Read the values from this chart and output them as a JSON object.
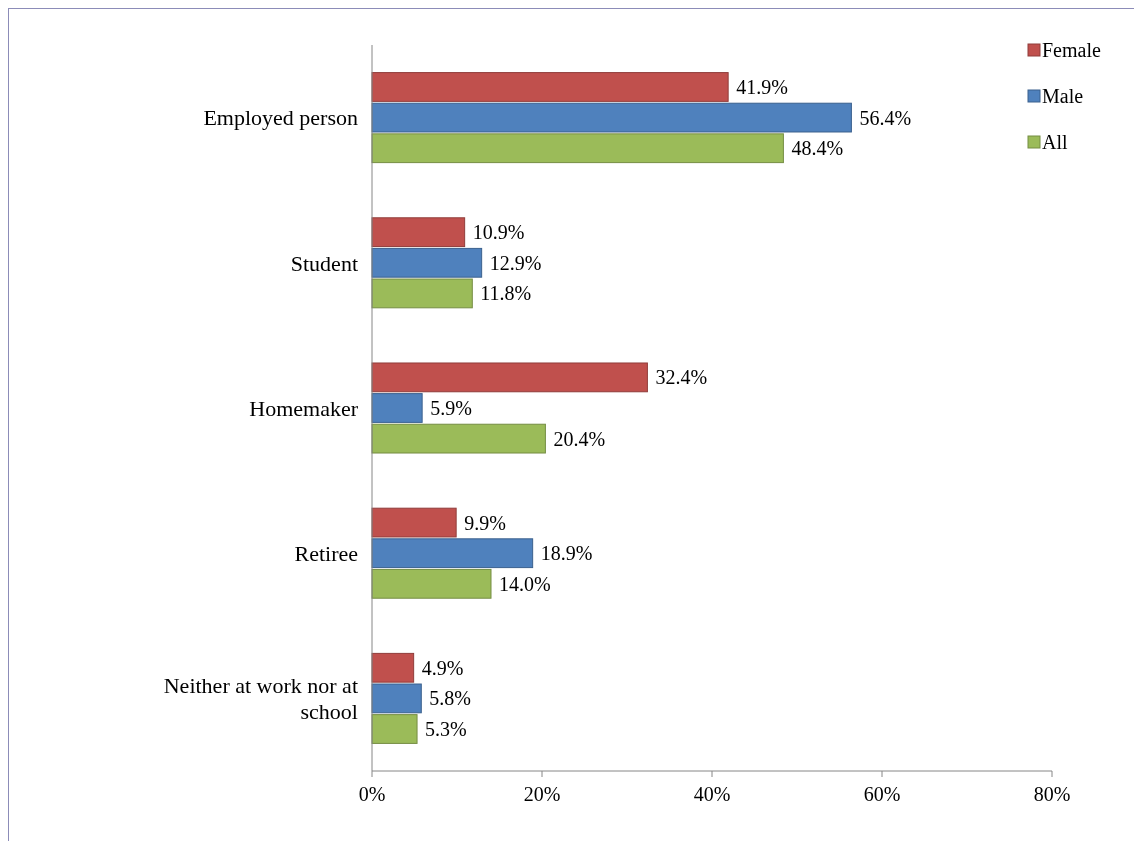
{
  "chart_data": {
    "type": "bar",
    "orientation": "horizontal",
    "categories": [
      "Employed person",
      "Student",
      "Homemaker",
      "Retiree",
      "Neither at work nor at school"
    ],
    "series": [
      {
        "name": "Female",
        "color": "#c0504d",
        "values": [
          41.9,
          10.9,
          32.4,
          9.9,
          4.9
        ],
        "value_labels": [
          "41.9%",
          "10.9%",
          "32.4%",
          "9.9%",
          "4.9%"
        ]
      },
      {
        "name": "Male",
        "color": "#4f81bd",
        "values": [
          56.4,
          12.9,
          5.9,
          18.9,
          5.8
        ],
        "value_labels": [
          "56.4%",
          "12.9%",
          "5.9%",
          "18.9%",
          "5.8%"
        ]
      },
      {
        "name": "All",
        "color": "#9bbb59",
        "values": [
          48.4,
          11.8,
          20.4,
          14.0,
          5.3
        ],
        "value_labels": [
          "48.4%",
          "11.8%",
          "20.4%",
          "14.0%",
          "5.3%"
        ]
      }
    ],
    "xlim": [
      0,
      80
    ],
    "xticks": [
      {
        "value": 0,
        "label": "0%"
      },
      {
        "value": 20,
        "label": "20%"
      },
      {
        "value": 40,
        "label": "40%"
      },
      {
        "value": 60,
        "label": "60%"
      },
      {
        "value": 80,
        "label": "80%"
      }
    ],
    "grid": false,
    "legend": "top right"
  }
}
